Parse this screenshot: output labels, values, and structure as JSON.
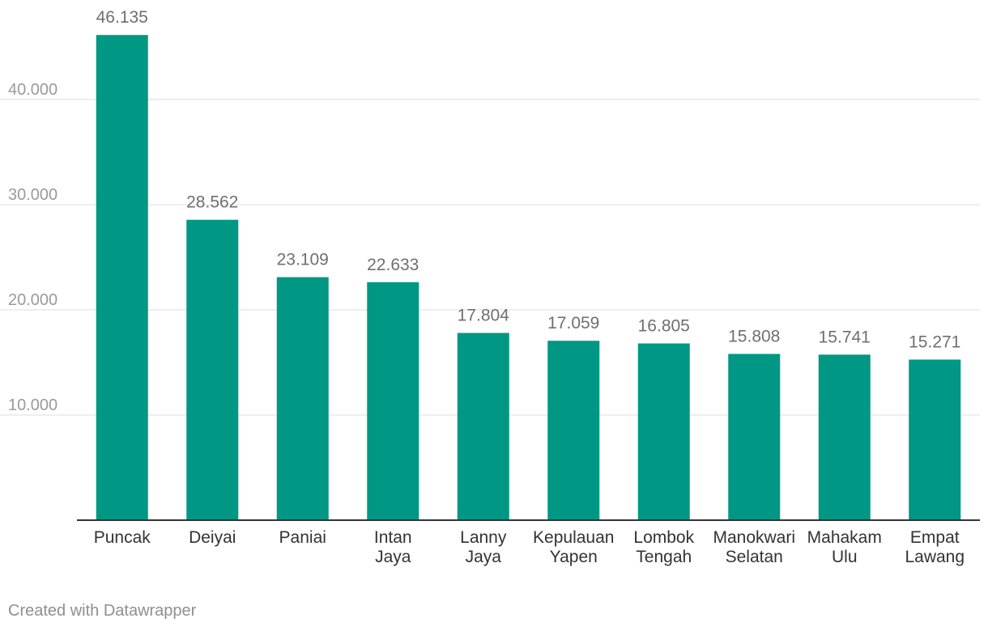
{
  "chart_data": {
    "type": "bar",
    "categories": [
      [
        "Puncak"
      ],
      [
        "Deiyai"
      ],
      [
        "Paniai"
      ],
      [
        "Intan",
        "Jaya"
      ],
      [
        "Lanny",
        "Jaya"
      ],
      [
        "Kepulauan",
        "Yapen"
      ],
      [
        "Lombok",
        "Tengah"
      ],
      [
        "Manokwari",
        "Selatan"
      ],
      [
        "Mahakam",
        "Ulu"
      ],
      [
        "Empat",
        "Lawang"
      ]
    ],
    "values": [
      46135,
      28562,
      23109,
      22633,
      17804,
      17059,
      16805,
      15808,
      15741,
      15271
    ],
    "value_labels": [
      "46.135",
      "28.562",
      "23.109",
      "22.633",
      "17.804",
      "17.059",
      "16.805",
      "15.808",
      "15.741",
      "15.271"
    ],
    "yticks": [
      10000,
      20000,
      30000,
      40000
    ],
    "ytick_labels": [
      "10.000",
      "20.000",
      "30.000",
      "40.000"
    ],
    "ylim": [
      0,
      50000
    ],
    "grid": true,
    "bar_color": "#009784",
    "title": "",
    "xlabel": "",
    "ylabel": ""
  },
  "footer": {
    "credit": "Created with Datawrapper"
  }
}
